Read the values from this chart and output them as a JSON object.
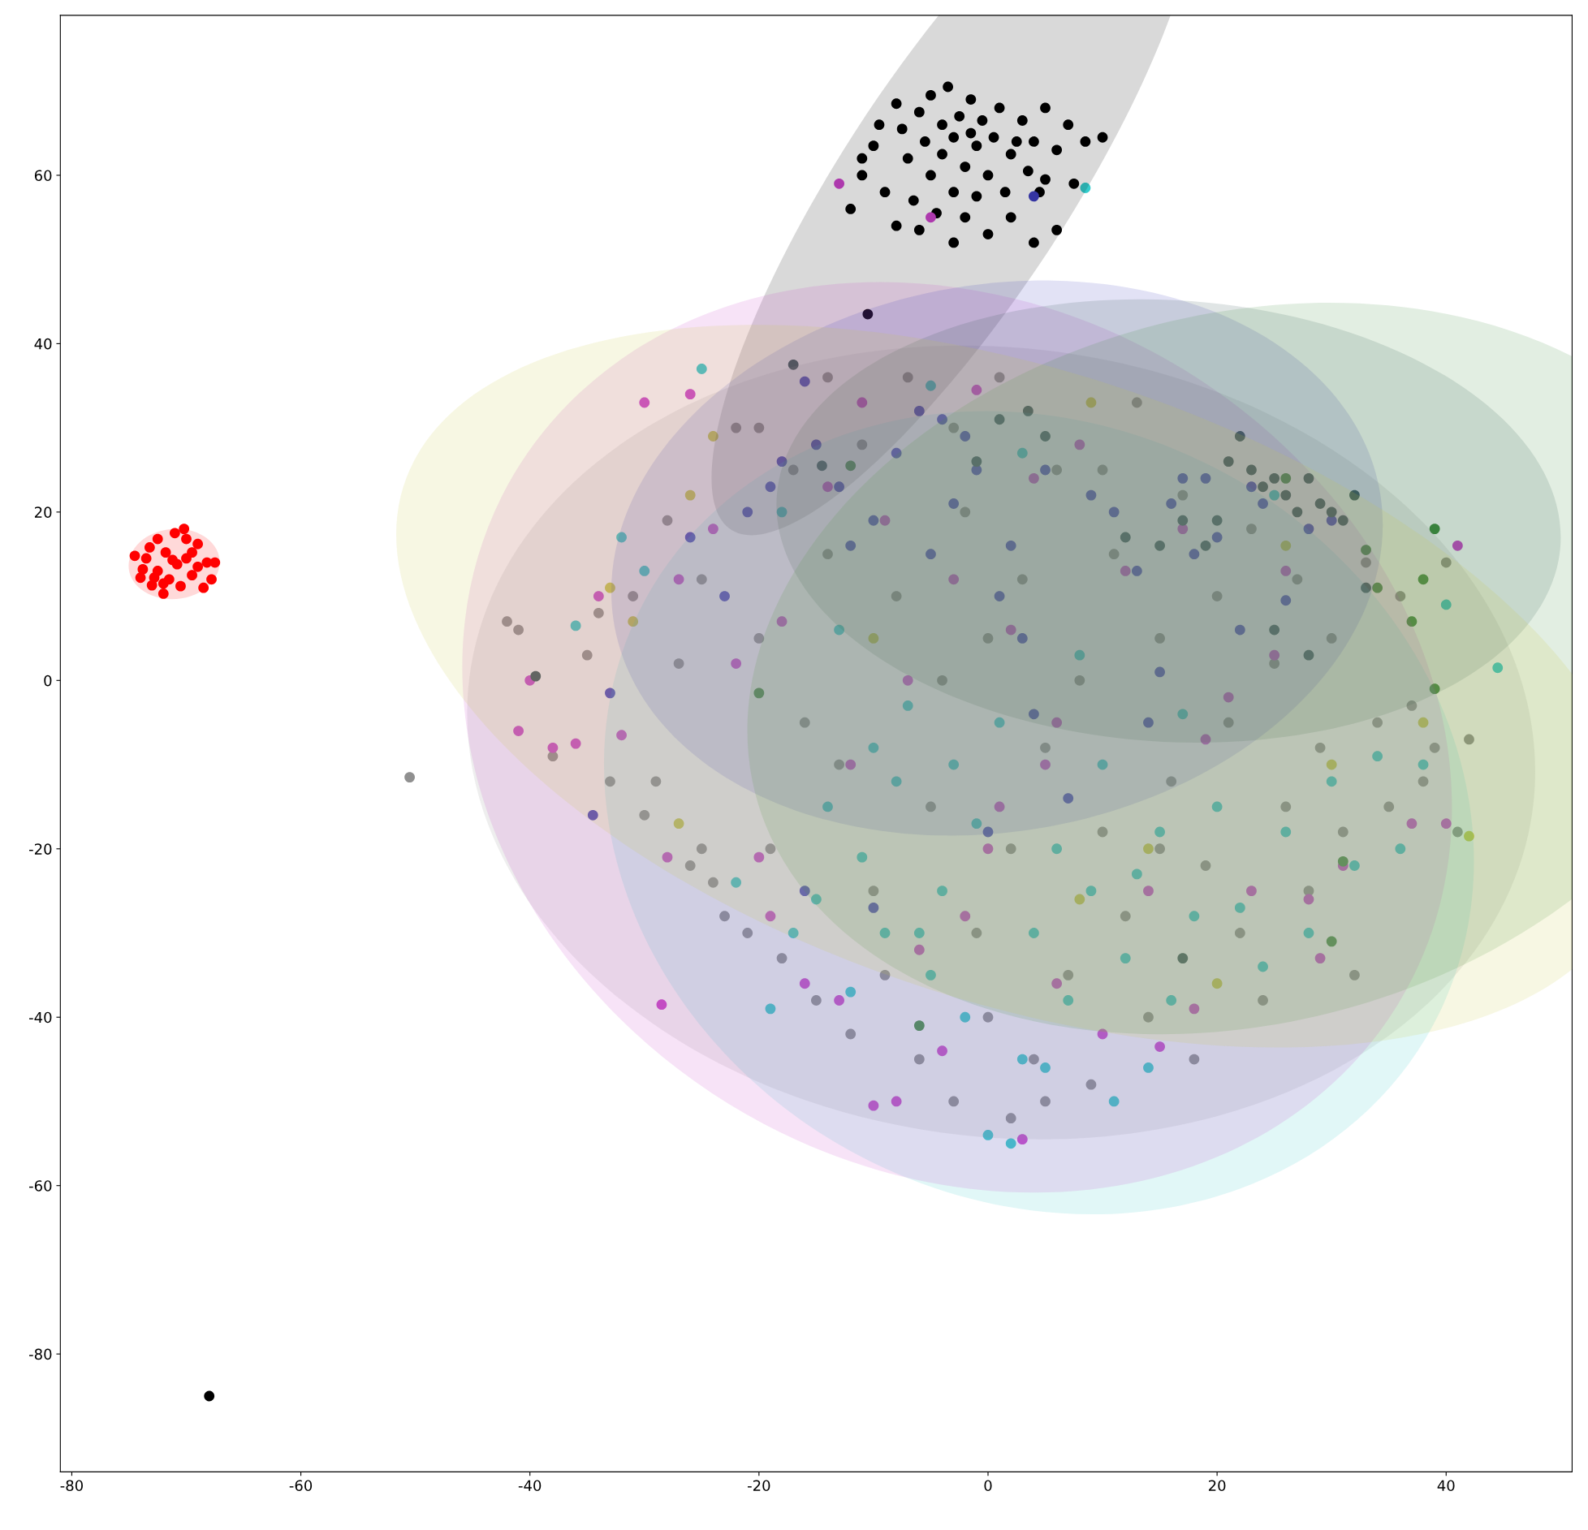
{
  "chart_data": {
    "type": "scatter",
    "marker": "circle",
    "grid": false,
    "xlim": [
      -81,
      51
    ],
    "ylim": [
      -94,
      79
    ],
    "xticks": [
      -80,
      -60,
      -40,
      -20,
      0,
      20,
      40
    ],
    "yticks": [
      -80,
      -60,
      -40,
      -20,
      0,
      20,
      40,
      60
    ],
    "series": [
      {
        "color": "#ff0000",
        "x": [
          -74.5,
          -74,
          -73.5,
          -73,
          -72.5,
          -72.5,
          -72,
          -71.8,
          -71.5,
          -71,
          -70.8,
          -70.5,
          -70,
          -70,
          -69.5,
          -69.5,
          -69,
          -68.5,
          -68.2,
          -67.8,
          -67.5,
          -73.8,
          -72.8,
          -71.2,
          -70.2,
          -69,
          -72,
          -73.2
        ],
        "values": [
          14.8,
          12.2,
          14.5,
          11.3,
          16.8,
          13,
          10.3,
          15.2,
          12,
          17.5,
          13.8,
          11.2,
          16.8,
          14.5,
          12.5,
          15.2,
          13.5,
          11,
          14,
          12,
          14,
          13.2,
          12.2,
          14.3,
          18,
          16.2,
          11.5,
          15.8
        ]
      },
      {
        "color": "#000000",
        "x": [
          -68,
          -12,
          -11,
          -10,
          -9,
          -8,
          -7.5,
          -7,
          -6.5,
          -6,
          -5.5,
          -5,
          -5,
          -4.5,
          -4,
          -4,
          -3.5,
          -3,
          -3,
          -2.5,
          -2,
          -2,
          -1.5,
          -1,
          -1,
          -0.5,
          0,
          0,
          0.5,
          1,
          1.5,
          2,
          2,
          3,
          3.5,
          4,
          4,
          5,
          5,
          6,
          6,
          7,
          7.5,
          8.5,
          10,
          -10.5,
          -8,
          -6,
          -3,
          -11,
          -9.5,
          -1.5,
          2.5,
          4.5
        ],
        "values": [
          -85,
          56,
          60,
          63.5,
          58,
          68.5,
          65.5,
          62,
          57,
          67.5,
          64,
          60,
          69.5,
          55.5,
          66,
          62.5,
          70.5,
          64.5,
          58,
          67,
          61,
          55,
          69,
          63.5,
          57.5,
          66.5,
          60,
          53,
          64.5,
          68,
          58,
          62.5,
          55,
          66.5,
          60.5,
          64,
          52,
          59.5,
          68,
          63,
          53.5,
          66,
          59,
          64,
          64.5,
          43.5,
          54,
          53.5,
          52,
          62,
          66,
          65,
          64,
          58
        ]
      },
      {
        "color": "#909090",
        "x": [
          -50.5,
          -42,
          -41,
          -38,
          -35,
          -34,
          -33,
          -31,
          -30,
          -29,
          -28,
          -27,
          -26,
          -25,
          -24,
          -23,
          -22,
          -21,
          -20,
          -19,
          -18,
          -17,
          -16,
          -15,
          -14,
          -13,
          -12,
          -11,
          -10,
          -9,
          -8,
          -7,
          -6,
          -5,
          -4,
          -3,
          -2,
          -1,
          0,
          0,
          1,
          2,
          2,
          3,
          4,
          5,
          6,
          7,
          8,
          9,
          10,
          11,
          12,
          13,
          14,
          15,
          16,
          17,
          18,
          19,
          20,
          21,
          22,
          23,
          24,
          25,
          26,
          27,
          28,
          29,
          30,
          31,
          32,
          33,
          34,
          35,
          36,
          37,
          38,
          39,
          40,
          41,
          42,
          -20,
          -14,
          5,
          10,
          -25,
          -3,
          15
        ],
        "values": [
          -11.5,
          7,
          6,
          -9,
          3,
          8,
          -12,
          10,
          -16,
          -12,
          19,
          2,
          -22,
          12,
          -24,
          -28,
          30,
          -30,
          5,
          -20,
          -33,
          25,
          -5,
          -38,
          15,
          -10,
          -42,
          28,
          -25,
          -35,
          10,
          36,
          -45,
          -15,
          0,
          -50,
          20,
          -30,
          -40,
          5,
          36,
          -52,
          -20,
          12,
          -45,
          -8,
          25,
          -35,
          0,
          -48,
          -18,
          15,
          -28,
          33,
          -40,
          5,
          -12,
          22,
          -45,
          -22,
          10,
          -5,
          -30,
          18,
          -38,
          2,
          -15,
          12,
          -25,
          -8,
          5,
          -18,
          -35,
          14,
          -5,
          -15,
          10,
          -3,
          -12,
          -8,
          14,
          -18,
          -7,
          30,
          36,
          -50,
          25,
          -20,
          30,
          -20
        ]
      },
      {
        "color": "#33cccc",
        "x": [
          -36,
          -32,
          -30,
          -25,
          -22,
          -19,
          -17,
          -15,
          -14,
          -13,
          -12,
          -11,
          -10,
          -9,
          -8,
          -7,
          -6,
          -5,
          -4,
          -3,
          -2,
          -1,
          0,
          1,
          2,
          3,
          4,
          5,
          6,
          7,
          8,
          9,
          10,
          11,
          12,
          13,
          14,
          15,
          16,
          17,
          18,
          20,
          22,
          24,
          26,
          28,
          30,
          32,
          34,
          36,
          38,
          40,
          44.5,
          8.5,
          -5,
          3,
          -18,
          25
        ],
        "values": [
          6.5,
          17,
          13,
          37,
          -24,
          -39,
          -30,
          -26,
          -15,
          6,
          -37,
          -21,
          -8,
          -30,
          -12,
          -3,
          -30,
          -35,
          -25,
          -10,
          -40,
          -17,
          -54,
          -5,
          -55,
          -45,
          -30,
          -46,
          -20,
          -38,
          3,
          -25,
          -10,
          -50,
          -33,
          -23,
          -46,
          -18,
          -38,
          -4,
          -28,
          -15,
          -27,
          -34,
          -18,
          -30,
          -12,
          -22,
          -9,
          -20,
          -10,
          9,
          1.5,
          58.5,
          35,
          27,
          20,
          22
        ]
      },
      {
        "color": "#cc44cc",
        "x": [
          -41,
          -40,
          -38,
          -36,
          -34,
          -32,
          -30,
          -28.5,
          -28,
          -27,
          -26,
          -24,
          -22,
          -20,
          -19,
          -18,
          -16,
          -14,
          -13,
          -12,
          -11,
          -10,
          -9,
          -7,
          -6,
          -5,
          -4,
          -3,
          -2,
          -1,
          0,
          1,
          2,
          3,
          4,
          5,
          6,
          8,
          10,
          12,
          14,
          15,
          17,
          18,
          19,
          21,
          23,
          25,
          26,
          28,
          29,
          31,
          37,
          40,
          41,
          -13,
          -8,
          6
        ],
        "values": [
          -6,
          0,
          -8,
          -7.5,
          10,
          -6.5,
          33,
          -38.5,
          -21,
          12,
          34,
          18,
          2,
          -21,
          -28,
          7,
          -36,
          23,
          -38,
          -10,
          33,
          -50.5,
          19,
          0,
          -32,
          55,
          -44,
          12,
          -28,
          34.5,
          -20,
          -15,
          6,
          -54.5,
          24,
          -10,
          -5,
          28,
          -42,
          13,
          -25,
          -43.5,
          18,
          -39,
          -7,
          -2,
          -25,
          3,
          13,
          -26,
          -33,
          -22,
          -17,
          -17,
          16,
          59,
          -50,
          -36
        ]
      },
      {
        "color": "#3f3fbf",
        "x": [
          -34.5,
          -33,
          -26,
          -23,
          -21,
          -19,
          -18,
          -16,
          -15,
          -13,
          -12,
          -10,
          -8,
          -6,
          -5,
          -4,
          -3,
          -2,
          -1,
          0,
          1,
          2,
          3,
          4,
          4,
          5,
          7,
          9,
          11,
          13,
          14,
          15,
          16,
          17,
          18,
          19,
          20,
          22,
          23,
          24,
          26,
          28,
          30,
          -10,
          -16
        ],
        "values": [
          -16,
          -1.5,
          17,
          10,
          20,
          23,
          26,
          35.5,
          28,
          23,
          16,
          19,
          27,
          32,
          15,
          31,
          21,
          29,
          25,
          -18,
          10,
          16,
          5,
          57.5,
          -4,
          25,
          -14,
          22,
          20,
          13,
          -5,
          1,
          21,
          24,
          15,
          24,
          17,
          6,
          23,
          21,
          9.5,
          18,
          19,
          -27,
          -25
        ]
      },
      {
        "color": "#2f4f4f",
        "x": [
          -39.5,
          -14.5,
          -17,
          -1,
          1,
          3.5,
          5,
          12,
          15,
          17,
          19,
          20,
          21,
          22,
          23,
          24,
          25,
          26,
          27,
          28,
          29,
          30,
          31,
          32,
          33,
          28,
          17,
          25
        ],
        "values": [
          0.5,
          25.5,
          37.5,
          26,
          31,
          32,
          29,
          17,
          16,
          19,
          16,
          19,
          26,
          29,
          25,
          23,
          24,
          22,
          20,
          24,
          21,
          20,
          19,
          22,
          11,
          3,
          -33,
          6
        ]
      },
      {
        "color": "#3a8a3a",
        "x": [
          -20,
          -12,
          -6,
          26,
          31,
          33,
          34,
          37,
          39,
          39,
          38,
          30
        ],
        "values": [
          -1.5,
          25.5,
          -41,
          24,
          -21.5,
          15.5,
          11,
          7,
          18,
          -1,
          12,
          -31
        ]
      },
      {
        "color": "#cccc44",
        "x": [
          -33,
          -27,
          -26,
          -24,
          -10,
          9,
          14,
          20,
          26,
          30,
          38,
          42,
          -31,
          8
        ],
        "values": [
          11,
          -17,
          22,
          29,
          5,
          33,
          -20,
          -36,
          16,
          -10,
          -5,
          -18.5,
          7,
          -26
        ]
      }
    ]
  }
}
